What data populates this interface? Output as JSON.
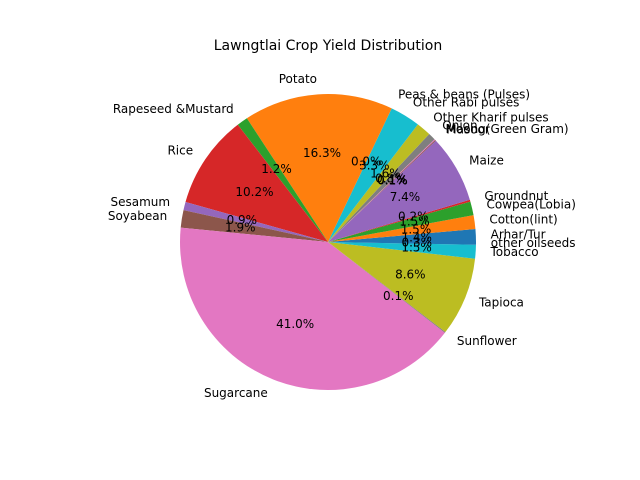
{
  "chart_data": {
    "type": "pie",
    "title": "Lawngtlai Crop Yield Distribution",
    "slices": [
      {
        "label": "Arhar/Tur",
        "value": 1.4,
        "pct": "1.4%",
        "color": "#1f77b4"
      },
      {
        "label": "Cotton(lint)",
        "value": 1.5,
        "pct": "1.5%",
        "color": "#ff7f0e"
      },
      {
        "label": "Cowpea(Lobia)",
        "value": 1.5,
        "pct": "1.5%",
        "color": "#2ca02c"
      },
      {
        "label": "Groundnut",
        "value": 0.2,
        "pct": "0.2%",
        "color": "#d62728"
      },
      {
        "label": "Maize",
        "value": 7.4,
        "pct": "7.4%",
        "color": "#9467bd"
      },
      {
        "label": "Masoor",
        "value": 0.1,
        "pct": "0.1%",
        "color": "#8c564b"
      },
      {
        "label": "Moong(Green Gram)",
        "value": 0.1,
        "pct": "0.1%",
        "color": "#e377c2"
      },
      {
        "label": "Onion",
        "value": 0.8,
        "pct": "0.8%",
        "color": "#7f7f7f"
      },
      {
        "label": "Other Kharif pulses",
        "value": 1.6,
        "pct": "1.6%",
        "color": "#bcbd22"
      },
      {
        "label": "Other Rabi pulses",
        "value": 3.3,
        "pct": "3.3%",
        "color": "#17becf"
      },
      {
        "label": "Peas & beans (Pulses)",
        "value": 0.0,
        "pct": "0.0%",
        "color": "#1f77b4"
      },
      {
        "label": "Potato",
        "value": 16.3,
        "pct": "16.3%",
        "color": "#ff7f0e"
      },
      {
        "label": "Rapeseed &Mustard",
        "value": 1.2,
        "pct": "1.2%",
        "color": "#2ca02c"
      },
      {
        "label": "Rice",
        "value": 10.2,
        "pct": "10.2%",
        "color": "#d62728"
      },
      {
        "label": "Sesamum",
        "value": 0.9,
        "pct": "0.9%",
        "color": "#9467bd"
      },
      {
        "label": "Soyabean",
        "value": 1.9,
        "pct": "1.9%",
        "color": "#8c564b"
      },
      {
        "label": "Sugarcane",
        "value": 41.0,
        "pct": "41.0%",
        "color": "#e377c2"
      },
      {
        "label": "Sunflower",
        "value": 0.1,
        "pct": "0.1%",
        "color": "#7f7f7f"
      },
      {
        "label": "Tapioca",
        "value": 8.6,
        "pct": "8.6%",
        "color": "#bcbd22"
      },
      {
        "label": "Tobacco",
        "value": 1.5,
        "pct": "1.5%",
        "color": "#17becf"
      },
      {
        "label": "other oilseeds",
        "value": 0.3,
        "pct": "0.3%",
        "color": "#1f77b4"
      }
    ]
  }
}
